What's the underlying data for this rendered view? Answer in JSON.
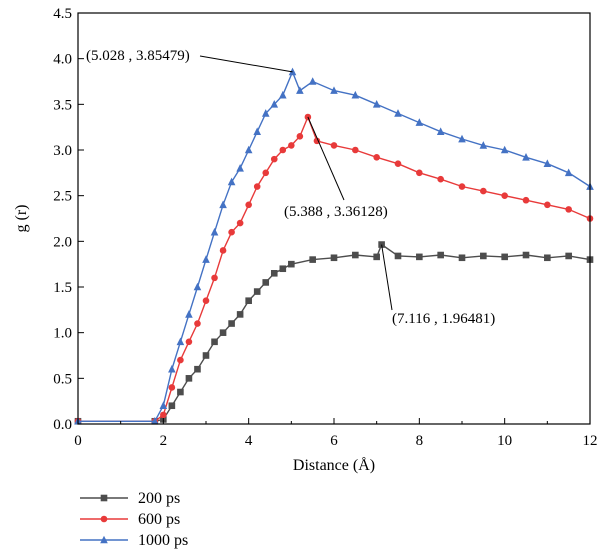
{
  "chart_data": {
    "type": "line",
    "title": "",
    "xlabel": "Distance (Å)",
    "ylabel": "g (r)",
    "xlim": [
      0,
      12
    ],
    "ylim": [
      0,
      4.5
    ],
    "xticks": [
      "0",
      "2",
      "4",
      "6",
      "8",
      "10",
      "12"
    ],
    "yticks": [
      "0.0",
      "0.5",
      "1.0",
      "1.5",
      "2.0",
      "2.5",
      "3.0",
      "3.5",
      "4.0",
      "4.5"
    ],
    "grid": false,
    "legend_position": "bottom-left",
    "series": [
      {
        "name": "200 ps",
        "color": "#4d4d4d",
        "marker": "square",
        "x": [
          0,
          1.8,
          2.0,
          2.2,
          2.4,
          2.6,
          2.8,
          3.0,
          3.2,
          3.4,
          3.6,
          3.8,
          4.0,
          4.2,
          4.4,
          4.6,
          4.8,
          5.0,
          5.5,
          6.0,
          6.5,
          7.0,
          7.116,
          7.5,
          8.0,
          8.5,
          9.0,
          9.5,
          10.0,
          10.5,
          11.0,
          11.5,
          12.0
        ],
        "y": [
          0.03,
          0.03,
          0.05,
          0.2,
          0.35,
          0.5,
          0.6,
          0.75,
          0.9,
          1.0,
          1.1,
          1.2,
          1.35,
          1.45,
          1.55,
          1.65,
          1.7,
          1.75,
          1.8,
          1.82,
          1.85,
          1.83,
          1.96481,
          1.84,
          1.83,
          1.85,
          1.82,
          1.84,
          1.83,
          1.85,
          1.82,
          1.84,
          1.8
        ]
      },
      {
        "name": "600 ps",
        "color": "#e83a3a",
        "marker": "circle",
        "x": [
          0,
          1.8,
          2.0,
          2.2,
          2.4,
          2.6,
          2.8,
          3.0,
          3.2,
          3.4,
          3.6,
          3.8,
          4.0,
          4.2,
          4.4,
          4.6,
          4.8,
          5.0,
          5.2,
          5.388,
          5.6,
          6.0,
          6.5,
          7.0,
          7.5,
          8.0,
          8.5,
          9.0,
          9.5,
          10.0,
          10.5,
          11.0,
          11.5,
          12.0
        ],
        "y": [
          0.03,
          0.03,
          0.1,
          0.4,
          0.7,
          0.9,
          1.1,
          1.35,
          1.6,
          1.9,
          2.1,
          2.2,
          2.4,
          2.6,
          2.75,
          2.9,
          3.0,
          3.05,
          3.15,
          3.36128,
          3.1,
          3.05,
          3.0,
          2.92,
          2.85,
          2.75,
          2.68,
          2.6,
          2.55,
          2.5,
          2.45,
          2.4,
          2.35,
          2.25
        ]
      },
      {
        "name": "1000 ps",
        "color": "#4472c4",
        "marker": "triangle",
        "x": [
          0,
          1.8,
          2.0,
          2.2,
          2.4,
          2.6,
          2.8,
          3.0,
          3.2,
          3.4,
          3.6,
          3.8,
          4.0,
          4.2,
          4.4,
          4.6,
          4.8,
          5.028,
          5.2,
          5.5,
          6.0,
          6.5,
          7.0,
          7.5,
          8.0,
          8.5,
          9.0,
          9.5,
          10.0,
          10.5,
          11.0,
          11.5,
          12.0
        ],
        "y": [
          0.03,
          0.03,
          0.2,
          0.6,
          0.9,
          1.2,
          1.5,
          1.8,
          2.1,
          2.4,
          2.65,
          2.8,
          3.0,
          3.2,
          3.4,
          3.5,
          3.6,
          3.85479,
          3.65,
          3.75,
          3.65,
          3.6,
          3.5,
          3.4,
          3.3,
          3.2,
          3.12,
          3.05,
          3.0,
          2.92,
          2.85,
          2.75,
          2.6
        ]
      }
    ],
    "annotations": [
      {
        "text": "(5.028 , 3.85479)",
        "x": 5.028,
        "y": 3.85479
      },
      {
        "text": "(5.388 , 3.36128)",
        "x": 5.388,
        "y": 3.36128
      },
      {
        "text": "(7.116 , 1.96481)",
        "x": 7.116,
        "y": 1.96481
      }
    ]
  }
}
